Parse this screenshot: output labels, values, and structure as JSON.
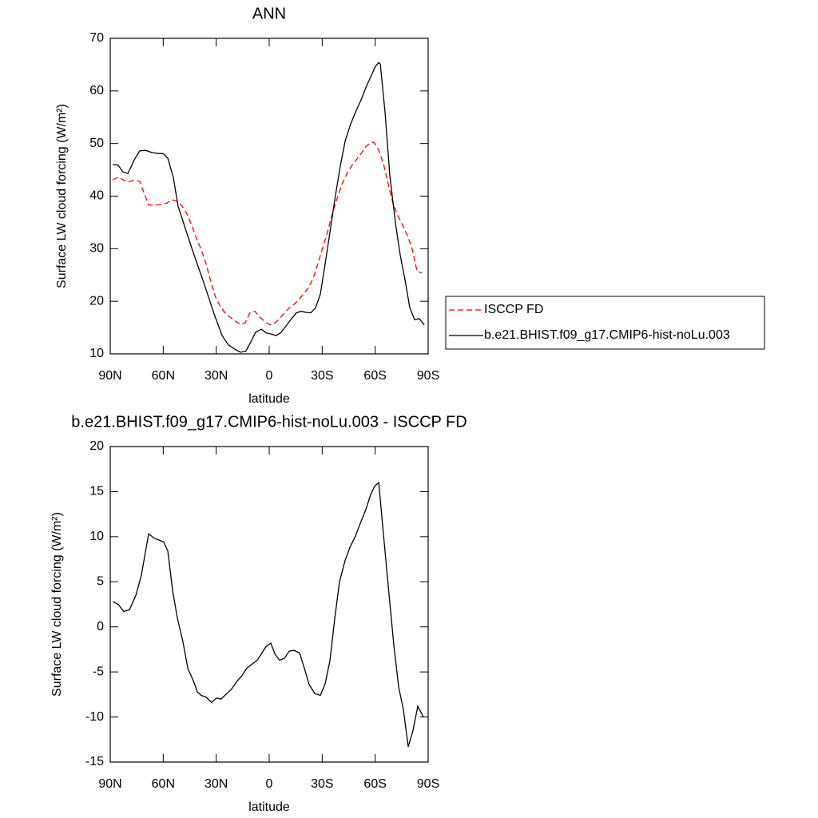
{
  "chart_data": [
    {
      "type": "line",
      "title": "ANN",
      "xlabel": "latitude",
      "ylabel": "Surface LW cloud forcing (W/m²)",
      "xlim": [
        90,
        -90
      ],
      "xticks": [
        {
          "value": 90,
          "label": "90N"
        },
        {
          "value": 60,
          "label": "60N"
        },
        {
          "value": 30,
          "label": "30N"
        },
        0,
        {
          "value": -30,
          "label": "30S"
        },
        {
          "value": -60,
          "label": "60S"
        },
        {
          "value": -90,
          "label": "90S"
        }
      ],
      "ylim": [
        10,
        70
      ],
      "yticks": [
        10,
        20,
        30,
        40,
        50,
        60,
        70
      ],
      "legend": "outside-right",
      "series": [
        {
          "name": "ISCCP FD",
          "color": "#ff0000",
          "dash": true,
          "x": [
            88.6,
            85.5,
            82.8,
            80.0,
            76.4,
            73.3,
            68.3,
            64.7,
            61.1,
            58.3,
            55.2,
            52.0,
            49.3,
            46.6,
            43.9,
            41.2,
            38.5,
            35.8,
            33.1,
            30.4,
            27.7,
            24.5,
            21.8,
            19.1,
            16.3,
            13.6,
            10.9,
            8.1,
            5.4,
            2.7,
            -0.5,
            -3.2,
            -5.9,
            -8.6,
            -11.3,
            -14.0,
            -16.7,
            -19.5,
            -22.2,
            -24.9,
            -27.6,
            -30.3,
            -33.0,
            -35.7,
            -38.5,
            -41.2,
            -43.9,
            -46.6,
            -49.3,
            -52.0,
            -54.7,
            -57.5,
            -59.3,
            -62.0,
            -64.7,
            -67.4,
            -70.1,
            -72.8,
            -75.5,
            -78.3,
            -81.0,
            -83.7,
            -86.4
          ],
          "values": [
            43.1,
            43.6,
            43.1,
            42.7,
            43.0,
            42.8,
            38.3,
            38.3,
            38.4,
            38.6,
            39.3,
            39.0,
            38.1,
            36.6,
            34.5,
            32.0,
            29.8,
            27.2,
            23.8,
            20.8,
            19.0,
            17.6,
            16.9,
            16.2,
            15.6,
            15.9,
            17.8,
            18.1,
            17.0,
            16.2,
            15.5,
            15.9,
            16.7,
            17.8,
            18.7,
            19.4,
            20.3,
            21.4,
            22.6,
            24.4,
            27.2,
            30.2,
            33.2,
            36.6,
            39.6,
            42.3,
            44.2,
            45.7,
            46.9,
            48.1,
            49.4,
            50.2,
            50.2,
            48.7,
            46.1,
            42.3,
            38.6,
            36.3,
            34.5,
            32.5,
            29.9,
            25.7,
            25.4
          ]
        },
        {
          "name": "b.e21.BHIST.f09_g17.CMIP6-hist-noLu.003",
          "color": "#000000",
          "dash": false,
          "x": [
            88.6,
            85.5,
            82.8,
            80.0,
            76.4,
            73.3,
            70.1,
            66.5,
            62.9,
            60.1,
            57.4,
            54.3,
            51.6,
            46.6,
            42.1,
            36.6,
            31.2,
            26.7,
            23.1,
            19.5,
            16.3,
            13.2,
            10.4,
            7.7,
            4.5,
            1.8,
            -0.9,
            -4.0,
            -6.8,
            -9.5,
            -12.2,
            -15.4,
            -18.1,
            -20.8,
            -23.5,
            -26.2,
            -29.0,
            -31.7,
            -34.4,
            -37.5,
            -40.3,
            -43.0,
            -46.1,
            -48.9,
            -52.0,
            -54.7,
            -57.5,
            -60.2,
            -62.0,
            -62.9,
            -65.6,
            -68.3,
            -71.5,
            -74.2,
            -76.9,
            -79.6,
            -82.3,
            -85.0,
            -87.8
          ],
          "values": [
            46.0,
            45.9,
            44.6,
            44.3,
            46.9,
            48.6,
            48.7,
            48.3,
            48.1,
            48.1,
            47.2,
            43.6,
            38.1,
            32.9,
            28.4,
            23.1,
            17.6,
            13.5,
            11.7,
            10.9,
            10.3,
            10.5,
            12.3,
            14.1,
            14.7,
            14.0,
            13.8,
            13.5,
            14.1,
            15.3,
            16.5,
            17.8,
            18.1,
            17.9,
            17.8,
            18.7,
            21.4,
            27.2,
            33.2,
            40.1,
            45.8,
            50.5,
            53.7,
            56.0,
            58.3,
            60.6,
            62.7,
            64.7,
            65.4,
            65.1,
            56.0,
            43.9,
            34.8,
            28.7,
            24.1,
            18.8,
            16.5,
            16.7,
            15.5
          ]
        }
      ]
    },
    {
      "type": "line",
      "title": "b.e21.BHIST.f09_g17.CMIP6-hist-noLu.003 - ISCCP FD",
      "xlabel": "latitude",
      "ylabel": "Surface LW cloud forcing (W/m²)",
      "xlim": [
        90,
        -90
      ],
      "xticks": [
        {
          "value": 90,
          "label": "90N"
        },
        {
          "value": 60,
          "label": "60N"
        },
        {
          "value": 30,
          "label": "30N"
        },
        0,
        {
          "value": -30,
          "label": "30S"
        },
        {
          "value": -60,
          "label": "60S"
        },
        {
          "value": -90,
          "label": "90S"
        }
      ],
      "ylim": [
        -15,
        20
      ],
      "yticks": [
        -15,
        -10,
        -5,
        0,
        5,
        10,
        15,
        20
      ],
      "series": [
        {
          "color": "#000000",
          "dash": false,
          "x": [
            88.6,
            85.5,
            82.3,
            79.1,
            75.5,
            72.4,
            68.3,
            64.7,
            62.0,
            59.7,
            57.4,
            54.7,
            52.0,
            48.8,
            46.1,
            42.9,
            40.7,
            38.5,
            35.7,
            32.6,
            29.9,
            27.2,
            24.0,
            21.3,
            18.1,
            15.4,
            12.7,
            9.5,
            6.8,
            4.1,
            1.8,
            -0.9,
            -3.2,
            -5.9,
            -8.6,
            -11.3,
            -14.0,
            -17.2,
            -19.9,
            -22.6,
            -25.8,
            -29.0,
            -31.7,
            -34.4,
            -37.1,
            -39.8,
            -43.0,
            -45.7,
            -48.9,
            -51.6,
            -54.7,
            -57.5,
            -59.7,
            -62.0,
            -64.7,
            -67.9,
            -70.6,
            -73.3,
            -76.0,
            -78.7,
            -81.4,
            -84.1,
            -87.3
          ],
          "values": [
            2.8,
            2.5,
            1.7,
            1.9,
            3.5,
            5.7,
            10.3,
            9.8,
            9.6,
            9.4,
            8.4,
            4.0,
            1.0,
            -1.7,
            -4.6,
            -6.0,
            -7.2,
            -7.6,
            -7.8,
            -8.4,
            -7.9,
            -8.0,
            -7.4,
            -6.9,
            -6.0,
            -5.4,
            -4.6,
            -4.1,
            -3.7,
            -2.9,
            -2.2,
            -1.8,
            -3.0,
            -3.7,
            -3.5,
            -2.7,
            -2.6,
            -2.9,
            -4.6,
            -6.4,
            -7.4,
            -7.6,
            -6.3,
            -3.7,
            0.9,
            5.0,
            7.4,
            8.8,
            10.1,
            11.5,
            13.0,
            14.7,
            15.6,
            16.0,
            10.2,
            3.5,
            -2.1,
            -6.7,
            -9.2,
            -13.3,
            -11.5,
            -8.8,
            -10.0
          ]
        }
      ]
    }
  ]
}
